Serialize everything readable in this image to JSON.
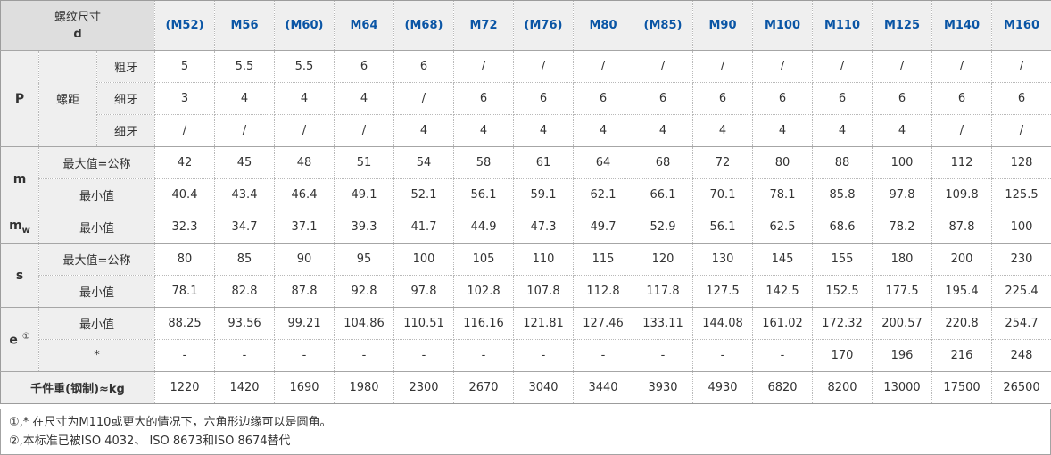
{
  "chart_data": {
    "type": "table",
    "corner_header": {
      "line1": "螺纹尺寸",
      "line2": "d"
    },
    "columns": [
      "(M52)",
      "M56",
      "(M60)",
      "M64",
      "(M68)",
      "M72",
      "(M76)",
      "M80",
      "(M85)",
      "M90",
      "M100",
      "M110",
      "M125",
      "M140",
      "M160"
    ],
    "row_groups": [
      {
        "group": "P",
        "pitch_label": "螺距",
        "rows": [
          {
            "label": "粗牙",
            "values": [
              "5",
              "5.5",
              "5.5",
              "6",
              "6",
              "/",
              "/",
              "/",
              "/",
              "/",
              "/",
              "/",
              "/",
              "/",
              "/"
            ]
          },
          {
            "label": "细牙",
            "values": [
              "3",
              "4",
              "4",
              "4",
              "/",
              "6",
              "6",
              "6",
              "6",
              "6",
              "6",
              "6",
              "6",
              "6",
              "6"
            ]
          },
          {
            "label": "细牙",
            "values": [
              "/",
              "/",
              "/",
              "/",
              "4",
              "4",
              "4",
              "4",
              "4",
              "4",
              "4",
              "4",
              "4",
              "/",
              "/"
            ]
          }
        ]
      },
      {
        "group": "m",
        "rows": [
          {
            "label": "最大值=公称",
            "values": [
              "42",
              "45",
              "48",
              "51",
              "54",
              "58",
              "61",
              "64",
              "68",
              "72",
              "80",
              "88",
              "100",
              "112",
              "128"
            ]
          },
          {
            "label": "最小值",
            "values": [
              "40.4",
              "43.4",
              "46.4",
              "49.1",
              "52.1",
              "56.1",
              "59.1",
              "62.1",
              "66.1",
              "70.1",
              "78.1",
              "85.8",
              "97.8",
              "109.8",
              "125.5"
            ]
          }
        ]
      },
      {
        "group": "m",
        "group_sub": "w",
        "rows": [
          {
            "label": "最小值",
            "values": [
              "32.3",
              "34.7",
              "37.1",
              "39.3",
              "41.7",
              "44.9",
              "47.3",
              "49.7",
              "52.9",
              "56.1",
              "62.5",
              "68.6",
              "78.2",
              "87.8",
              "100"
            ]
          }
        ]
      },
      {
        "group": "s",
        "rows": [
          {
            "label": "最大值=公称",
            "values": [
              "80",
              "85",
              "90",
              "95",
              "100",
              "105",
              "110",
              "115",
              "120",
              "130",
              "145",
              "155",
              "180",
              "200",
              "230"
            ]
          },
          {
            "label": "最小值",
            "values": [
              "78.1",
              "82.8",
              "87.8",
              "92.8",
              "97.8",
              "102.8",
              "107.8",
              "112.8",
              "117.8",
              "127.5",
              "142.5",
              "152.5",
              "177.5",
              "195.4",
              "225.4"
            ]
          }
        ]
      },
      {
        "group": "e",
        "group_sup": "①",
        "rows": [
          {
            "label": "最小值",
            "values": [
              "88.25",
              "93.56",
              "99.21",
              "104.86",
              "110.51",
              "116.16",
              "121.81",
              "127.46",
              "133.11",
              "144.08",
              "161.02",
              "172.32",
              "200.57",
              "220.8",
              "254.7"
            ]
          },
          {
            "label": "*",
            "values": [
              "-",
              "-",
              "-",
              "-",
              "-",
              "-",
              "-",
              "-",
              "-",
              "-",
              "-",
              "170",
              "196",
              "216",
              "248"
            ]
          }
        ]
      },
      {
        "group_full": "千件重(钢制)≈kg",
        "rows": [
          {
            "values": [
              "1220",
              "1420",
              "1690",
              "1980",
              "2300",
              "2670",
              "3040",
              "3440",
              "3930",
              "4930",
              "6820",
              "8200",
              "13000",
              "17500",
              "26500"
            ]
          }
        ]
      }
    ],
    "footnotes": [
      "①,* 在尺寸为M110或更大的情况下，六角形边缘可以是圆角。",
      "②,本标准已被ISO 4032、 ISO 8673和ISO 8674替代"
    ],
    "colors": {
      "header_text_blue": "#0a55a5",
      "corner_header_bg": "#dedede",
      "column_header_bg": "#efefef",
      "row_label_bg": "#efefef",
      "border_dotted": "#b9b9b9",
      "border_solid": "#a6a6a6"
    }
  }
}
